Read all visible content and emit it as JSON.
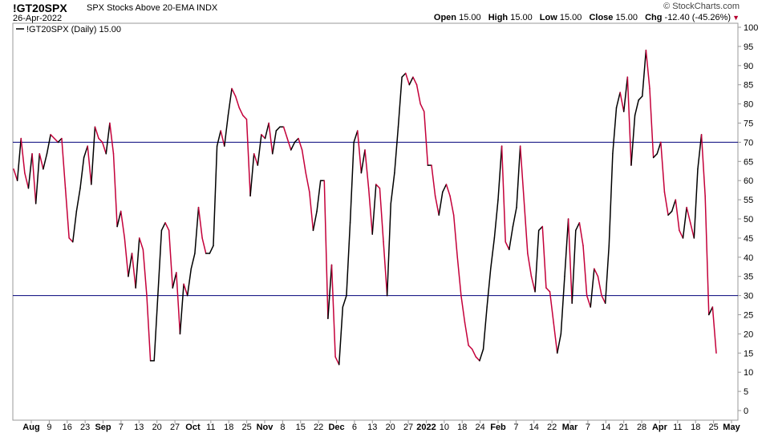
{
  "header": {
    "symbol": "!GT20SPX",
    "description": "SPX Stocks Above 20-EMA",
    "exchange": "INDX",
    "date": "26-Apr-2022",
    "watermark": "© StockCharts.com",
    "open_label": "Open",
    "open_value": "15.00",
    "high_label": "High",
    "high_value": "15.00",
    "low_label": "Low",
    "low_value": "15.00",
    "close_label": "Close",
    "close_value": "15.00",
    "chg_label": "Chg",
    "chg_value": "-12.40 (-45.26%)"
  },
  "chart_data": {
    "type": "line",
    "legend": "!GT20SPX (Daily) 15.00",
    "legend_position": "top-left",
    "ylim": [
      0,
      100
    ],
    "y_ticks": [
      0,
      5,
      10,
      15,
      20,
      25,
      30,
      35,
      40,
      45,
      50,
      55,
      60,
      65,
      70,
      75,
      80,
      85,
      90,
      95,
      100
    ],
    "reference_lines": [
      70,
      30
    ],
    "x_labels": [
      "Aug",
      "9",
      "16",
      "23",
      "Sep",
      "7",
      "13",
      "20",
      "27",
      "Oct",
      "11",
      "18",
      "25",
      "Nov",
      "8",
      "15",
      "22",
      "Dec",
      "6",
      "13",
      "20",
      "27",
      "2022",
      "10",
      "18",
      "24",
      "Feb",
      "7",
      "14",
      "22",
      "Mar",
      "7",
      "14",
      "21",
      "28",
      "Apr",
      "11",
      "18",
      "25",
      "May"
    ],
    "x_label_bold": [
      "Aug",
      "Sep",
      "Oct",
      "Nov",
      "Dec",
      "2022",
      "Feb",
      "Mar",
      "Apr",
      "May"
    ],
    "up_color": "#000000",
    "down_color": "#c4003a",
    "ref_line_color": "#00007a",
    "values": [
      63,
      60,
      71,
      62,
      58,
      67,
      54,
      67,
      63,
      67,
      72,
      71,
      70,
      71,
      58,
      45,
      44,
      52,
      58,
      66,
      69,
      59,
      74,
      71,
      70,
      67,
      75,
      67,
      48,
      52,
      45,
      35,
      41,
      32,
      45,
      42,
      30,
      13,
      13,
      30,
      47,
      49,
      47,
      32,
      36,
      20,
      33,
      30,
      37,
      41,
      53,
      45,
      41,
      41,
      43,
      69,
      73,
      69,
      77,
      84,
      82,
      79,
      77,
      76,
      56,
      67,
      64,
      72,
      71,
      75,
      67,
      73,
      74,
      74,
      71,
      68,
      70,
      71,
      68,
      62,
      57,
      47,
      52,
      60,
      60,
      24,
      38,
      14,
      12,
      27,
      30,
      49,
      70,
      73,
      62,
      68,
      58,
      46,
      59,
      58,
      44,
      30,
      54,
      62,
      74,
      87,
      88,
      85,
      87,
      85,
      80,
      78,
      64,
      64,
      56,
      51,
      57,
      59,
      56,
      51,
      40,
      30,
      23,
      17,
      16,
      14,
      13,
      16,
      27,
      37,
      45,
      55,
      69,
      44,
      42,
      48,
      53,
      69,
      55,
      41,
      35,
      31,
      47,
      48,
      32,
      31,
      23,
      15,
      20,
      35,
      50,
      28,
      47,
      49,
      43,
      30,
      27,
      37,
      35,
      30,
      28,
      43,
      67,
      79,
      83,
      78,
      87,
      64,
      77,
      81,
      82,
      94,
      84,
      66,
      67,
      70,
      57,
      51,
      52,
      55,
      47,
      45,
      53,
      49,
      45,
      63,
      72,
      56,
      25,
      27,
      15
    ]
  }
}
